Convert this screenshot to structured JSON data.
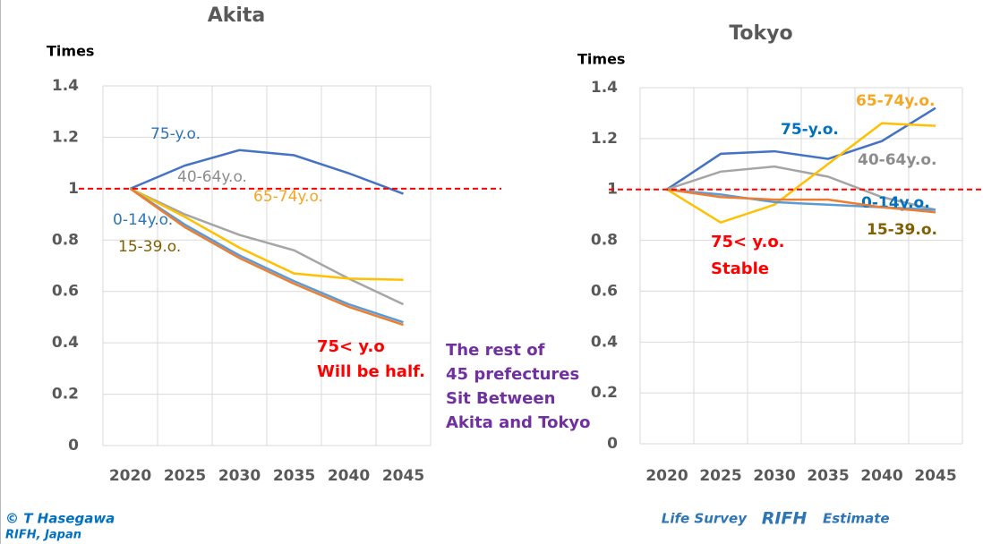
{
  "chart_data": [
    {
      "type": "line",
      "title": "Akita",
      "y_label": "Times",
      "categories": [
        "2020",
        "2025",
        "2030",
        "2035",
        "2040",
        "2045"
      ],
      "ylim": [
        0,
        1.4
      ],
      "yticks": [
        0,
        0.2,
        0.4,
        0.6,
        0.8,
        1,
        1.2,
        1.4
      ],
      "grid": true,
      "reference_line": {
        "value": 1,
        "color": "#ff0000"
      },
      "series": [
        {
          "name": "75-y.o.",
          "color": "#4472c4",
          "label_color": "#2e75b6",
          "values": [
            1,
            1.09,
            1.15,
            1.13,
            1.06,
            0.98
          ]
        },
        {
          "name": "40-64y.o.",
          "color": "#a5a5a5",
          "label_color": "#8c8c8c",
          "values": [
            1,
            0.9,
            0.82,
            0.76,
            0.65,
            0.55
          ]
        },
        {
          "name": "65-74y.o.",
          "color": "#ffc000",
          "label_color": "#f5a623",
          "values": [
            1,
            0.89,
            0.77,
            0.67,
            0.65,
            0.645
          ]
        },
        {
          "name": "0-14y.o.",
          "color": "#5b9bd5",
          "label_color": "#2e75b6",
          "values": [
            1,
            0.86,
            0.74,
            0.64,
            0.55,
            0.48
          ]
        },
        {
          "name": "15-39.o.",
          "color": "#ed7d31",
          "label_color": "#806000",
          "values": [
            1,
            0.85,
            0.73,
            0.63,
            0.54,
            0.47
          ]
        }
      ],
      "annotation": [
        "75< y.o",
        "Will be half."
      ]
    },
    {
      "type": "line",
      "title": "Tokyo",
      "y_label": "Times",
      "categories": [
        "2020",
        "2025",
        "2030",
        "2035",
        "2040",
        "2045"
      ],
      "ylim": [
        0,
        1.4
      ],
      "yticks": [
        0,
        0.2,
        0.4,
        0.6,
        0.8,
        1,
        1.2,
        1.4
      ],
      "grid": true,
      "reference_line": {
        "value": 1,
        "color": "#ff0000"
      },
      "series": [
        {
          "name": "75-y.o.",
          "color": "#4472c4",
          "label_color": "#0070c0",
          "values": [
            1,
            1.14,
            1.15,
            1.12,
            1.19,
            1.32
          ]
        },
        {
          "name": "40-64y.o.",
          "color": "#a5a5a5",
          "label_color": "#8c8c8c",
          "values": [
            1,
            1.07,
            1.09,
            1.05,
            0.97,
            0.92
          ]
        },
        {
          "name": "65-74y.o.",
          "color": "#ffc000",
          "label_color": "#f5a623",
          "values": [
            1,
            0.87,
            0.94,
            1.1,
            1.26,
            1.25
          ]
        },
        {
          "name": "0-14y.o.",
          "color": "#5b9bd5",
          "label_color": "#0070c0",
          "values": [
            1,
            0.98,
            0.95,
            0.94,
            0.93,
            0.92
          ]
        },
        {
          "name": "15-39.o.",
          "color": "#ed7d31",
          "label_color": "#806000",
          "values": [
            1,
            0.97,
            0.96,
            0.96,
            0.93,
            0.91
          ]
        }
      ],
      "annotation": [
        "75< y.o.",
        "Stable"
      ]
    }
  ],
  "middle_note": [
    "The rest of",
    "45 prefectures",
    "Sit Between",
    "Akita and Tokyo"
  ],
  "footer": {
    "copyright": "© T Hasegawa",
    "org": "RIFH, Japan",
    "source": [
      "Life Survey",
      "RIFH",
      "Estimate"
    ]
  }
}
